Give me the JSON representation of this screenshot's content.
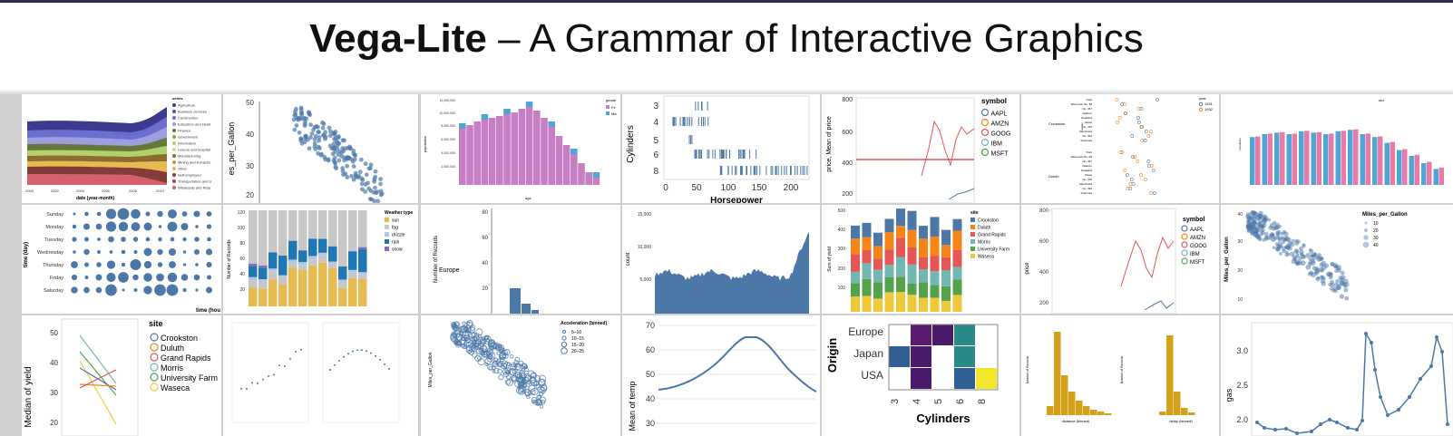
{
  "title": {
    "bold": "Vega-Lite",
    "rest": " – A Grammar of Interactive Graphics"
  },
  "colors": {
    "steel": "#4c78a8",
    "orange": "#f58518",
    "red": "#e45756",
    "teal": "#72b7b2",
    "green": "#54a24b",
    "yellow": "#eeca3b",
    "purple": "#b279a2",
    "pink": "#ff9da6"
  },
  "tiles": {
    "r1c1": {
      "legend_title": "series",
      "xlabel": "date (year-month)",
      "ticks": [
        "2000",
        "2002",
        "2004",
        "2006",
        "2008",
        "2010"
      ],
      "legend": [
        "Agriculture",
        "Business services",
        "Construction",
        "Education and Healt",
        "Finance",
        "Government",
        "Information",
        "Leisure and hospital",
        "Manufacturing",
        "Mining and Extractio",
        "Other",
        "Self-employed",
        "Transportation and U",
        "Wholesale and Reta"
      ]
    },
    "r1c2": {
      "ylabel": "es_per_Gallon",
      "yticks": [
        "50",
        "40",
        "30",
        "20"
      ]
    },
    "r1c3": {
      "ylabel": "population",
      "xlabel": "age",
      "legend_title": "gende",
      "legend": [
        "Fe",
        "Ma"
      ],
      "yticks": [
        "12,000,000",
        "10,000,000",
        "8,000,000",
        "6,000,000",
        "4,000,000",
        "2,000,000"
      ]
    },
    "r1c4": {
      "ylabel": "Cylinders",
      "xlabel": "Horsepower",
      "yticks": [
        "3",
        "4",
        "5",
        "6",
        "8"
      ],
      "xticks": [
        "0",
        "50",
        "100",
        "150",
        "200"
      ]
    },
    "r1c5": {
      "ylabel": "price, Mean of price",
      "legend_title": "symbol",
      "legend": [
        "AAPL",
        "AMZN",
        "GOOG",
        "IBM",
        "MSFT"
      ],
      "yticks": [
        "800",
        "600",
        "400",
        "200"
      ]
    },
    "r1c6": {
      "legend_title": "year",
      "legend": [
        "1931",
        "1932"
      ],
      "groups": [
        "Crookston",
        "Duluth"
      ],
      "ylabel": "variety",
      "varieties": [
        "Trebi",
        "Wisconsin No. 38",
        "No. 457",
        "Glabron",
        "Peatland",
        "Velvet",
        "No. 475",
        "Manchuria",
        "No. 462",
        "Svansota"
      ]
    },
    "r1c7": {
      "ylabel": "population",
      "legend_title": "sex"
    },
    "r2c1": {
      "ylabel": "time (day)",
      "xlabel": "time (hou",
      "days": [
        "Sunday",
        "Monday",
        "Tuesday",
        "Wednesday",
        "Thursday",
        "Friday",
        "Saturday"
      ]
    },
    "r2c2": {
      "ylabel": "Number of Records",
      "legend_title": "Weather type",
      "legend": [
        "sun",
        "fog",
        "drizzle",
        "rain",
        "snow"
      ],
      "yticks": [
        "120",
        "100",
        "80",
        "60",
        "40",
        "20"
      ]
    },
    "r2c3": {
      "ylabel": "Number of Records",
      "label": "Europe",
      "yticks": [
        "80",
        "60",
        "40",
        "20"
      ]
    },
    "r2c4": {
      "ylabel": "count",
      "yticks": [
        "15,000",
        "10,000",
        "5,000"
      ]
    },
    "r2c5": {
      "ylabel": "Sum of yield",
      "legend_title": "site",
      "legend": [
        "Crookston",
        "Duluth",
        "Grand Rapids",
        "Morris",
        "University Farm",
        "Waseca"
      ],
      "yticks": [
        "500",
        "400",
        "300",
        "200",
        "100"
      ]
    },
    "r2c6": {
      "ylabel": "price",
      "legend_title": "symbol",
      "legend": [
        "AAPL",
        "AMZN",
        "GOOG",
        "IBM",
        "MSFT"
      ],
      "yticks": [
        "800",
        "600",
        "400",
        "200"
      ]
    },
    "r2c7": {
      "ylabel": "Miles_per_Gallon",
      "legend_title": "Miles_per_Gallon",
      "legend": [
        "10",
        "20",
        "30",
        "40"
      ],
      "yticks": [
        "40",
        "30",
        "20",
        "10"
      ]
    },
    "r3c1": {
      "ylabel": "Median of yield",
      "legend_title": "site",
      "legend": [
        "Crookston",
        "Duluth",
        "Grand Rapids",
        "Morris",
        "University Farm",
        "Waseca"
      ],
      "yticks": [
        "50",
        "40",
        "30",
        "20"
      ]
    },
    "r3c3": {
      "ylabel": "Miles_per_Gallon",
      "legend_title": "Acceleration (binned)",
      "legend": [
        "5–10",
        "10–15",
        "15–20",
        "20–25"
      ]
    },
    "r3c4": {
      "ylabel": "Mean of temp",
      "yticks": [
        "70",
        "60",
        "50",
        "40",
        "30"
      ]
    },
    "r3c5": {
      "ylabel": "Origin",
      "xlabel": "Cylinders",
      "rows": [
        "Europe",
        "Japan",
        "USA"
      ],
      "cols": [
        "3",
        "4",
        "5",
        "6",
        "8"
      ]
    },
    "r3c6": {
      "ylabel": "Number of Records",
      "xlabel1": "distance (binned)",
      "xlabel2": "delay (binned)"
    },
    "r3c7": {
      "ylabel": "gas",
      "yticks": [
        "3.0",
        "2.5",
        "2.0"
      ]
    }
  }
}
